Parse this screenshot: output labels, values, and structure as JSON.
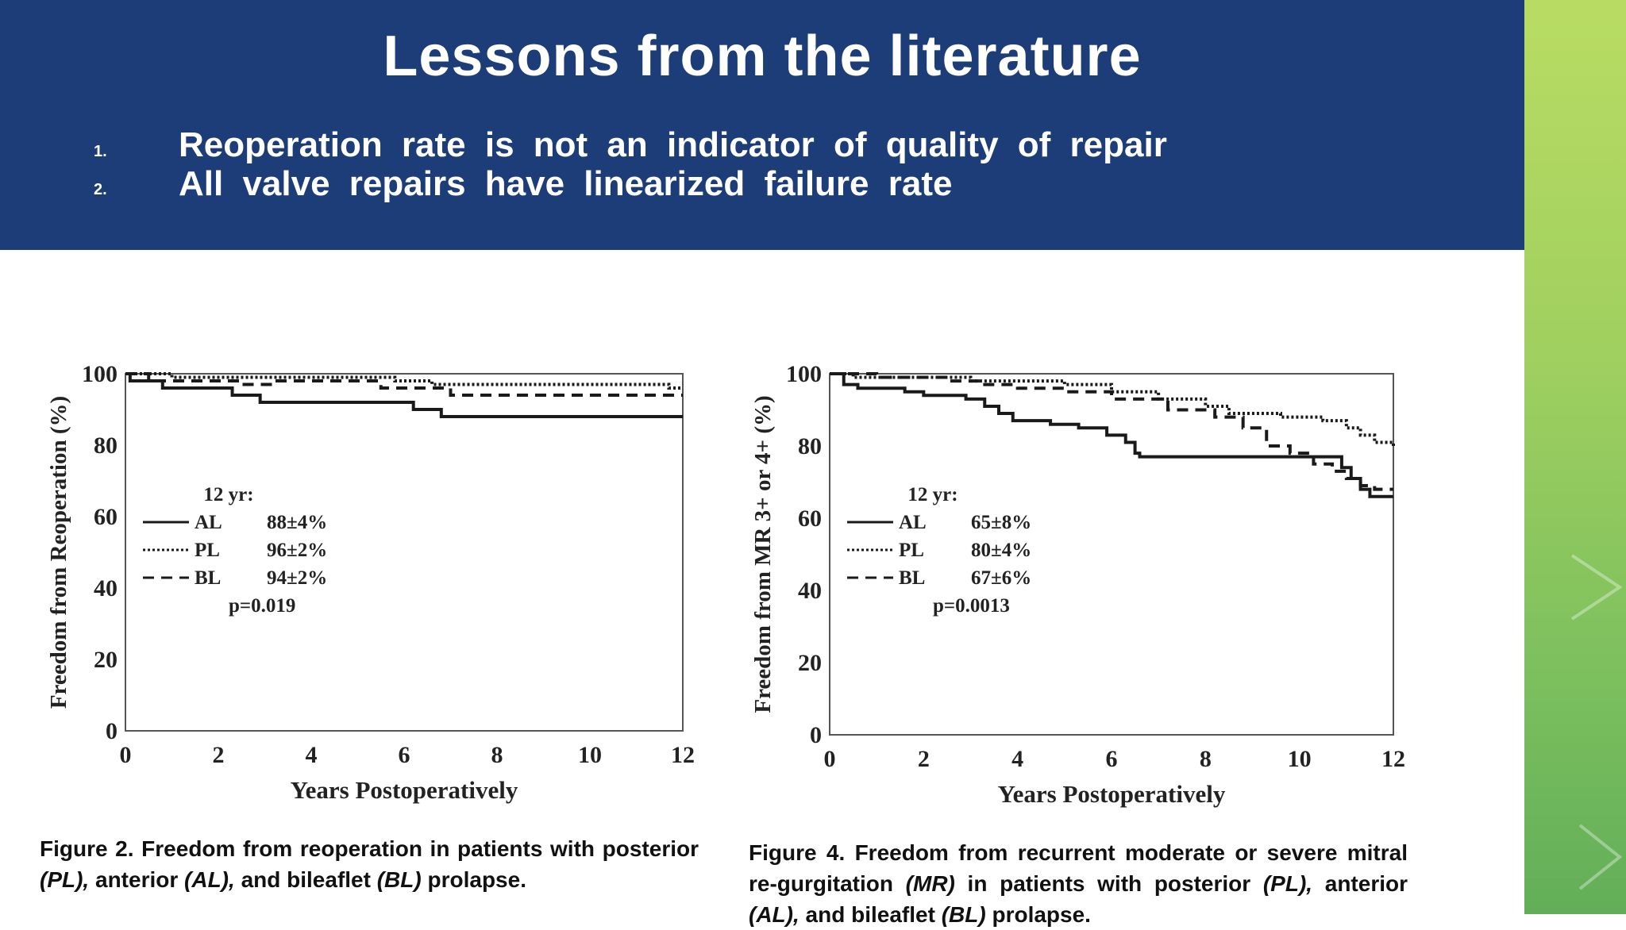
{
  "slide": {
    "title": "Lessons from the literature",
    "bullets": [
      {
        "num": "1.",
        "text": "Reoperation rate is not an indicator of quality of repair"
      },
      {
        "num": "2.",
        "text": "All valve repairs have linearized failure rate"
      }
    ]
  },
  "colors": {
    "banner": "#1d3d78",
    "accent_strip": "#9fcf5f",
    "ink": "#222222"
  },
  "chart_data": [
    {
      "type": "line",
      "ylabel": "Freedom from Reoperation (%)",
      "xlabel": "Years Postoperatively",
      "xlim": [
        0,
        12
      ],
      "ylim": [
        0,
        100
      ],
      "x_ticks": [
        "0",
        "2",
        "4",
        "6",
        "8",
        "10",
        "12"
      ],
      "y_ticks": [
        "0",
        "20",
        "40",
        "60",
        "80",
        "100"
      ],
      "legend": {
        "header": "12 yr:",
        "rows": [
          {
            "series": "AL",
            "value": "88±4%"
          },
          {
            "series": "PL",
            "value": "96±2%"
          },
          {
            "series": "BL",
            "value": "94±2%"
          }
        ],
        "pvalue": "p=0.019"
      },
      "series": [
        {
          "name": "AL",
          "style": "solid",
          "points": [
            [
              0,
              100
            ],
            [
              0.1,
              98
            ],
            [
              0.8,
              96
            ],
            [
              2.3,
              94
            ],
            [
              2.9,
              92
            ],
            [
              6.2,
              90
            ],
            [
              6.8,
              88
            ],
            [
              12,
              88
            ]
          ]
        },
        {
          "name": "PL",
          "style": "dotted",
          "points": [
            [
              0,
              100
            ],
            [
              1,
              99
            ],
            [
              5.8,
              98
            ],
            [
              6.6,
              97
            ],
            [
              11.7,
              96
            ],
            [
              12,
              96
            ]
          ]
        },
        {
          "name": "BL",
          "style": "dashed",
          "points": [
            [
              0,
              100
            ],
            [
              0.5,
              98
            ],
            [
              2.5,
              97
            ],
            [
              3.2,
              98
            ],
            [
              5.5,
              96
            ],
            [
              7,
              94
            ],
            [
              12,
              94
            ]
          ]
        }
      ],
      "caption": {
        "label": "Figure 2.",
        "parts": [
          {
            "t": " Freedom from reoperation in patients with posterior ",
            "i": false
          },
          {
            "t": "(PL),",
            "i": true
          },
          {
            "t": " anterior ",
            "i": false
          },
          {
            "t": "(AL),",
            "i": true
          },
          {
            "t": " and bileaflet ",
            "i": false
          },
          {
            "t": "(BL)",
            "i": true
          },
          {
            "t": " prolapse.",
            "i": false
          }
        ]
      }
    },
    {
      "type": "line",
      "ylabel": "Freedom from MR 3+ or 4+ (%)",
      "xlabel": "Years Postoperatively",
      "xlim": [
        0,
        12
      ],
      "ylim": [
        0,
        100
      ],
      "x_ticks": [
        "0",
        "2",
        "4",
        "6",
        "8",
        "10",
        "12"
      ],
      "y_ticks": [
        "0",
        "20",
        "40",
        "60",
        "80",
        "100"
      ],
      "legend": {
        "header": "12 yr:",
        "rows": [
          {
            "series": "AL",
            "value": "65±8%"
          },
          {
            "series": "PL",
            "value": "80±4%"
          },
          {
            "series": "BL",
            "value": "67±6%"
          }
        ],
        "pvalue": "p=0.0013"
      },
      "series": [
        {
          "name": "AL",
          "style": "solid",
          "points": [
            [
              0,
              100
            ],
            [
              0.3,
              97
            ],
            [
              0.6,
              96
            ],
            [
              1.6,
              95
            ],
            [
              2,
              94
            ],
            [
              2.9,
              93
            ],
            [
              3.3,
              91
            ],
            [
              3.6,
              89
            ],
            [
              3.9,
              87
            ],
            [
              4.7,
              86
            ],
            [
              5.3,
              85
            ],
            [
              5.9,
              83
            ],
            [
              6.3,
              81
            ],
            [
              6.5,
              78
            ],
            [
              6.6,
              77
            ],
            [
              10.8,
              77
            ],
            [
              10.9,
              74
            ],
            [
              11.1,
              71
            ],
            [
              11.3,
              68
            ],
            [
              11.5,
              66
            ],
            [
              12,
              66
            ]
          ]
        },
        {
          "name": "PL",
          "style": "dotted",
          "points": [
            [
              0,
              100
            ],
            [
              0.5,
              99
            ],
            [
              1,
              99
            ],
            [
              2.5,
              99
            ],
            [
              3,
              98
            ],
            [
              4,
              98
            ],
            [
              5,
              97
            ],
            [
              6,
              95
            ],
            [
              7,
              93
            ],
            [
              8,
              91
            ],
            [
              8.5,
              89
            ],
            [
              9.3,
              89
            ],
            [
              9.6,
              88
            ],
            [
              10.5,
              87
            ],
            [
              11,
              85
            ],
            [
              11.3,
              83
            ],
            [
              11.6,
              81
            ],
            [
              12,
              80
            ]
          ]
        },
        {
          "name": "BL",
          "style": "dashed",
          "points": [
            [
              0,
              100
            ],
            [
              1,
              99
            ],
            [
              2.5,
              98
            ],
            [
              3.2,
              97
            ],
            [
              4,
              96
            ],
            [
              5,
              95
            ],
            [
              6,
              93
            ],
            [
              6.8,
              93
            ],
            [
              7.2,
              90
            ],
            [
              8.2,
              88
            ],
            [
              8.8,
              85
            ],
            [
              9.3,
              80
            ],
            [
              9.8,
              78
            ],
            [
              10.3,
              75
            ],
            [
              10.7,
              73
            ],
            [
              11,
              71
            ],
            [
              11.3,
              69
            ],
            [
              11.6,
              68
            ],
            [
              12,
              68
            ]
          ]
        }
      ],
      "caption": {
        "label": "Figure 4.",
        "parts": [
          {
            "t": " Freedom from recurrent moderate or severe mitral re-gurgitation ",
            "i": false
          },
          {
            "t": "(MR)",
            "i": true
          },
          {
            "t": " in patients with posterior ",
            "i": false
          },
          {
            "t": "(PL),",
            "i": true
          },
          {
            "t": " anterior ",
            "i": false
          },
          {
            "t": "(AL),",
            "i": true
          },
          {
            "t": " and bileaflet ",
            "i": false
          },
          {
            "t": "(BL)",
            "i": true
          },
          {
            "t": " prolapse.",
            "i": false
          }
        ]
      }
    }
  ]
}
